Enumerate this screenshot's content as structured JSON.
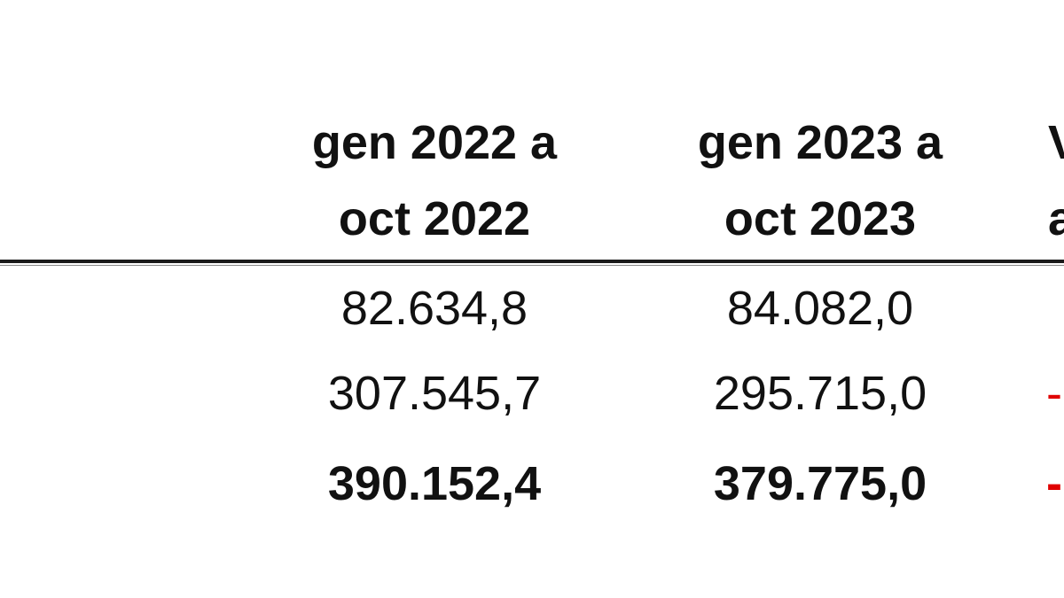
{
  "table": {
    "columns": [
      {
        "line1": "gen 2022 a",
        "line2": "oct 2022"
      },
      {
        "line1": "gen 2023 a",
        "line2": "oct 2023"
      },
      {
        "line1": "V",
        "line2": "a"
      }
    ],
    "rows": [
      {
        "v2022": "82.634,8",
        "v2023": "84.082,0",
        "var": ""
      },
      {
        "v2022": "307.545,7",
        "v2023": "295.715,0",
        "var": "-"
      },
      {
        "v2022": "390.152,4",
        "v2023": "379.775,0",
        "var": "-"
      }
    ]
  },
  "colors": {
    "text": "#111111",
    "negative": "#e00000",
    "rule": "#1a1a1a"
  }
}
